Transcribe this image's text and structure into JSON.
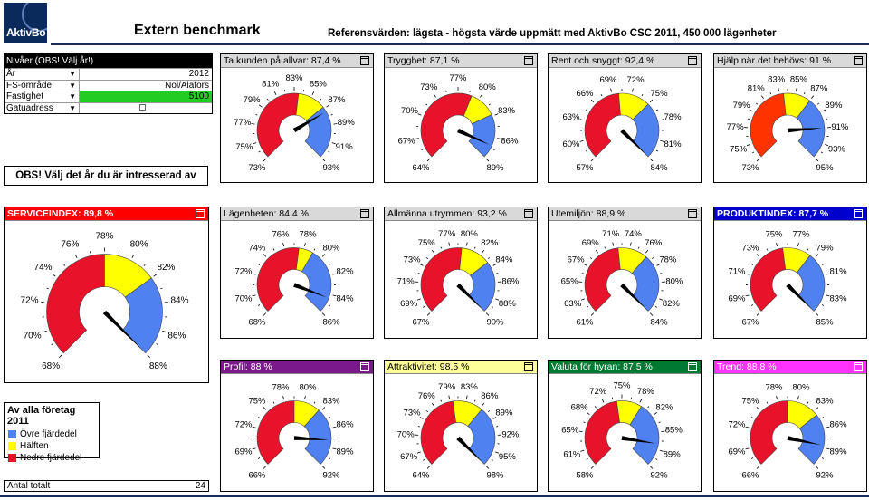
{
  "header": {
    "logo_text": "AktivBo",
    "title": "Extern benchmark",
    "subtitle": "Referensvärden: lägsta - högsta värde uppmätt med AktivBo CSC 2011, 450 000 lägenheter"
  },
  "filter": {
    "heading": "Nivåer (OBS! Välj år!)",
    "rows": [
      {
        "label": "År",
        "value": "2012"
      },
      {
        "label": "FS-område",
        "value": "Nol/Alafors"
      },
      {
        "label": "Fastighet",
        "value": "5100"
      },
      {
        "label": "Gatuadress",
        "value": ""
      }
    ]
  },
  "obs_button": "OBS! Välj det år du är intresserad av",
  "legend": {
    "title": "Av alla företag 2011",
    "items": [
      {
        "label": "Övre fjärdedel",
        "color": "#4f81f0"
      },
      {
        "label": "Hälften",
        "color": "#ffff00"
      },
      {
        "label": "Nedre fjärdedel",
        "color": "#e8132b"
      }
    ]
  },
  "antal": {
    "label": "Antal totalt",
    "value": "24"
  },
  "colors": {
    "red": "#e8132b",
    "yellow": "#ffff00",
    "blue": "#4f81f0",
    "orange_red": "#ff3300"
  },
  "gauges": [
    {
      "id": "ta-kunden",
      "title": "Ta kunden på allvar: 87,4 %",
      "value": 87.4,
      "min": 73,
      "max": 93,
      "q1": 83.5,
      "q3": 86.8,
      "ticks": [
        "73%",
        "75%",
        "77%",
        "79%",
        "81%",
        "83%",
        "85%",
        "87%",
        "89%",
        "91%",
        "93%"
      ],
      "header_bg": "#d9d9d9",
      "header_fg": "#000"
    },
    {
      "id": "trygghet",
      "title": "Trygghet: 87,1 %",
      "value": 87.1,
      "min": 64,
      "max": 89,
      "q1": 78.5,
      "q3": 82.5,
      "ticks": [
        "64%",
        "67%",
        "70%",
        "73%",
        "77%",
        "80%",
        "83%",
        "86%",
        "89%"
      ],
      "header_bg": "#d9d9d9",
      "header_fg": "#000"
    },
    {
      "id": "rent-snyggt",
      "title": "Rent och snyggt: 92,4 %",
      "value": 92.4,
      "min": 57,
      "max": 84,
      "q1": 70,
      "q3": 75,
      "ticks": [
        "57%",
        "60%",
        "63%",
        "66%",
        "69%",
        "72%",
        "75%",
        "78%",
        "81%",
        "84%"
      ],
      "header_bg": "#d9d9d9",
      "header_fg": "#000"
    },
    {
      "id": "hjalp",
      "title": "Hjälp när det behövs: 91 %",
      "value": 91,
      "min": 73,
      "max": 95,
      "q1": 83.5,
      "q3": 87,
      "ticks": [
        "73%",
        "75%",
        "77%",
        "79%",
        "81%",
        "83%",
        "85%",
        "87%",
        "89%",
        "91%",
        "93%",
        "95%"
      ],
      "header_bg": "#d9d9d9",
      "header_fg": "#000",
      "lowcolor": "#ff3300"
    },
    {
      "id": "serviceindex",
      "title": "SERVICEINDEX: 89,8 %",
      "value": 89.8,
      "min": 68,
      "max": 88,
      "q1": 78,
      "q3": 82,
      "ticks": [
        "68%",
        "70%",
        "72%",
        "74%",
        "76%",
        "78%",
        "80%",
        "82%",
        "84%",
        "86%",
        "88%"
      ],
      "header_bg": "#ff0000",
      "header_fg": "#fff",
      "big": true
    },
    {
      "id": "lagenheten",
      "title": "Lägenheten: 84,4 %",
      "value": 84.4,
      "min": 68,
      "max": 86,
      "q1": 77.5,
      "q3": 79,
      "ticks": [
        "68%",
        "70%",
        "72%",
        "74%",
        "76%",
        "78%",
        "80%",
        "82%",
        "84%",
        "86%"
      ],
      "header_bg": "#d9d9d9",
      "header_fg": "#000"
    },
    {
      "id": "allmanna",
      "title": "Allmänna utrymmen: 93,2 %",
      "value": 93.2,
      "min": 67,
      "max": 90,
      "q1": 79,
      "q3": 83,
      "ticks": [
        "67%",
        "69%",
        "71%",
        "73%",
        "75%",
        "77%",
        "80%",
        "82%",
        "84%",
        "86%",
        "88%",
        "90%"
      ],
      "header_bg": "#d9d9d9",
      "header_fg": "#000"
    },
    {
      "id": "utemiljon",
      "title": "Utemiljön: 88,9 %",
      "value": 88.9,
      "min": 61,
      "max": 84,
      "q1": 72,
      "q3": 76,
      "ticks": [
        "61%",
        "63%",
        "65%",
        "67%",
        "69%",
        "71%",
        "74%",
        "76%",
        "78%",
        "80%",
        "82%",
        "84%"
      ],
      "header_bg": "#d9d9d9",
      "header_fg": "#000"
    },
    {
      "id": "produktindex",
      "title": "PRODUKTINDEX: 87,7 %",
      "value": 87.7,
      "min": 67,
      "max": 85,
      "q1": 75.5,
      "q3": 78.5,
      "ticks": [
        "67%",
        "69%",
        "71%",
        "73%",
        "75%",
        "77%",
        "79%",
        "81%",
        "83%",
        "85%"
      ],
      "header_bg": "#0000cc",
      "header_fg": "#fff"
    },
    {
      "id": "profil",
      "title": "Profil: 88 %",
      "value": 88,
      "min": 66,
      "max": 92,
      "q1": 79,
      "q3": 83,
      "ticks": [
        "66%",
        "69%",
        "72%",
        "75%",
        "78%",
        "80%",
        "83%",
        "86%",
        "89%",
        "92%"
      ],
      "header_bg": "#7a1a8a",
      "header_fg": "#fff"
    },
    {
      "id": "attraktivitet",
      "title": "Attraktivitet: 98,5 %",
      "value": 98.5,
      "min": 64,
      "max": 98,
      "q1": 80,
      "q3": 86,
      "ticks": [
        "64%",
        "67%",
        "70%",
        "73%",
        "76%",
        "79%",
        "83%",
        "86%",
        "89%",
        "92%",
        "95%",
        "98%"
      ],
      "header_bg": "#ffff99",
      "header_fg": "#000"
    },
    {
      "id": "valuta",
      "title": "Valuta för hyran: 87,5 %",
      "value": 87.5,
      "min": 58,
      "max": 92,
      "q1": 74,
      "q3": 79,
      "ticks": [
        "58%",
        "61%",
        "65%",
        "68%",
        "72%",
        "75%",
        "78%",
        "82%",
        "85%",
        "89%",
        "92%"
      ],
      "header_bg": "#007a33",
      "header_fg": "#fff"
    },
    {
      "id": "trend",
      "title": "Trend: 88,8 %",
      "value": 88.8,
      "min": 66,
      "max": 92,
      "q1": 79,
      "q3": 84,
      "ticks": [
        "66%",
        "69%",
        "72%",
        "75%",
        "78%",
        "80%",
        "83%",
        "86%",
        "89%",
        "92%"
      ],
      "header_bg": "#ff33ff",
      "header_fg": "#fff"
    }
  ]
}
